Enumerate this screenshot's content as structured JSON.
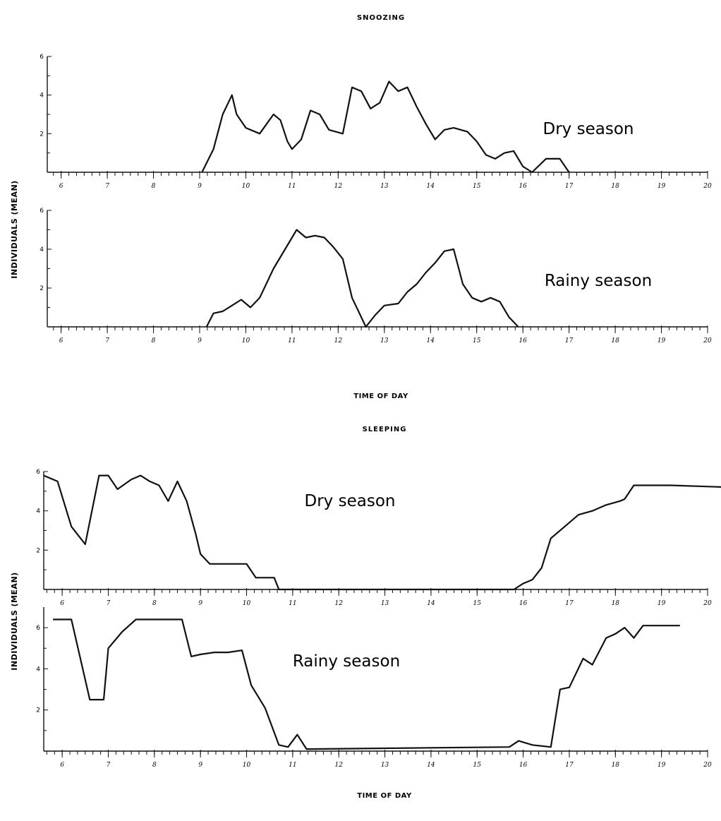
{
  "figures": [
    {
      "title": "SNOOZING",
      "xlabel": "TIME OF DAY",
      "ylabel": "INDIVIDUALS (MEAN)"
    },
    {
      "title": "SLEEPING",
      "xlabel": "TIME OF DAY",
      "ylabel": "INDIVIDUALS (MEAN)"
    }
  ],
  "chart_data": [
    {
      "type": "line",
      "group": "SNOOZING",
      "label": "Dry season",
      "xlim": [
        5.7,
        20
      ],
      "ylim": [
        0,
        6
      ],
      "x_ticks": [
        6,
        7,
        8,
        9,
        10,
        11,
        12,
        13,
        14,
        15,
        16,
        17,
        18,
        19,
        20
      ],
      "y_ticks": [
        2,
        4,
        6
      ],
      "x_tick_labels": [
        "6",
        "7",
        "8",
        "9",
        "10",
        "11",
        "12",
        "13",
        "14",
        "15",
        "16",
        "17",
        "18",
        "19",
        "20"
      ],
      "y_tick_labels": [
        "2",
        "4",
        "6"
      ],
      "grid": false,
      "series": [
        {
          "x": [
            9.05,
            9.3,
            9.5,
            9.7,
            9.8,
            10.0,
            10.3,
            10.6,
            10.75,
            10.9,
            11.0,
            11.2,
            11.4,
            11.6,
            11.8,
            12.1,
            12.3,
            12.5,
            12.7,
            12.9,
            13.1,
            13.3,
            13.5,
            13.7,
            13.9,
            14.1,
            14.3,
            14.5,
            14.8,
            15.0,
            15.2,
            15.4,
            15.6,
            15.8,
            16.0,
            16.2,
            16.5,
            16.8,
            17.0
          ],
          "y": [
            0,
            1.2,
            3.0,
            4.0,
            3.0,
            2.3,
            2.0,
            3.0,
            2.7,
            1.6,
            1.2,
            1.7,
            3.2,
            3.0,
            2.2,
            2.0,
            4.4,
            4.2,
            3.3,
            3.6,
            4.7,
            4.2,
            4.4,
            3.4,
            2.5,
            1.7,
            2.2,
            2.3,
            2.1,
            1.6,
            0.9,
            0.7,
            1.0,
            1.1,
            0.3,
            0,
            0.7,
            0.7,
            0
          ]
        }
      ]
    },
    {
      "type": "line",
      "group": "SNOOZING",
      "label": "Rainy season",
      "xlim": [
        5.7,
        20
      ],
      "ylim": [
        0,
        6
      ],
      "x_ticks": [
        6,
        7,
        8,
        9,
        10,
        11,
        12,
        13,
        14,
        15,
        16,
        17,
        18,
        19,
        20
      ],
      "y_ticks": [
        2,
        4,
        6
      ],
      "x_tick_labels": [
        "6",
        "7",
        "8",
        "9",
        "10",
        "11",
        "12",
        "13",
        "14",
        "15",
        "16",
        "17",
        "18",
        "19",
        "20"
      ],
      "y_tick_labels": [
        "2",
        "4",
        "6"
      ],
      "grid": false,
      "series": [
        {
          "x": [
            9.15,
            9.3,
            9.5,
            9.7,
            9.9,
            10.1,
            10.3,
            10.6,
            10.9,
            11.1,
            11.3,
            11.5,
            11.7,
            11.9,
            12.1,
            12.3,
            12.6,
            12.8,
            13.0,
            13.3,
            13.5,
            13.7,
            13.9,
            14.1,
            14.3,
            14.5,
            14.7,
            14.9,
            15.1,
            15.3,
            15.5,
            15.7,
            15.9
          ],
          "y": [
            0,
            0.7,
            0.8,
            1.1,
            1.4,
            1.0,
            1.5,
            3.0,
            4.2,
            5.0,
            4.6,
            4.7,
            4.6,
            4.1,
            3.5,
            1.5,
            0,
            0.6,
            1.1,
            1.2,
            1.8,
            2.2,
            2.8,
            3.3,
            3.9,
            4.0,
            2.2,
            1.5,
            1.3,
            1.5,
            1.3,
            0.5,
            0
          ]
        }
      ]
    },
    {
      "type": "line",
      "group": "SLEEPING",
      "label": "Dry season",
      "xlim": [
        5.6,
        20
      ],
      "ylim": [
        0,
        6
      ],
      "x_ticks": [
        6,
        7,
        8,
        9,
        10,
        11,
        12,
        13,
        14,
        15,
        16,
        17,
        18,
        19,
        20
      ],
      "y_ticks": [
        2,
        4,
        6
      ],
      "x_tick_labels": [
        "6",
        "7",
        "8",
        "9",
        "10",
        "11",
        "12",
        "13",
        "14",
        "15",
        "16",
        "17",
        "18",
        "19",
        "20"
      ],
      "y_tick_labels": [
        "2",
        "4",
        "6"
      ],
      "grid": false,
      "series": [
        {
          "x": [
            5.6,
            5.9,
            6.2,
            6.5,
            6.8,
            7.0,
            7.2,
            7.5,
            7.7,
            7.9,
            8.1,
            8.3,
            8.5,
            8.7,
            8.9,
            9.0,
            9.2,
            9.5,
            10.0,
            10.2,
            10.6,
            10.7,
            15.8,
            16.0,
            16.2,
            16.4,
            16.6,
            16.9,
            17.2,
            17.5,
            17.8,
            18.1,
            18.2,
            18.4,
            19.2,
            20.5
          ],
          "y": [
            5.8,
            5.5,
            3.2,
            2.3,
            5.8,
            5.8,
            5.1,
            5.6,
            5.8,
            5.5,
            5.3,
            4.5,
            5.5,
            4.5,
            2.8,
            1.8,
            1.3,
            1.3,
            1.3,
            0.6,
            0.6,
            0,
            0,
            0.3,
            0.5,
            1.1,
            2.6,
            3.2,
            3.8,
            4.0,
            4.3,
            4.5,
            4.6,
            5.3,
            5.3,
            5.2
          ]
        }
      ]
    },
    {
      "type": "line",
      "group": "SLEEPING",
      "label": "Rainy season",
      "xlim": [
        5.6,
        20
      ],
      "ylim": [
        0,
        7
      ],
      "x_ticks": [
        6,
        7,
        8,
        9,
        10,
        11,
        12,
        13,
        14,
        15,
        16,
        17,
        18,
        19,
        20
      ],
      "y_ticks": [
        2,
        4,
        6
      ],
      "x_tick_labels": [
        "6",
        "7",
        "8",
        "9",
        "10",
        "11",
        "12",
        "13",
        "14",
        "15",
        "16",
        "17",
        "18",
        "19",
        "20"
      ],
      "y_tick_labels": [
        "2",
        "4",
        "6"
      ],
      "grid": false,
      "series": [
        {
          "x": [
            5.8,
            6.2,
            6.6,
            6.9,
            7.0,
            7.3,
            7.6,
            8.0,
            8.6,
            8.8,
            9.0,
            9.3,
            9.6,
            9.9,
            10.1,
            10.4,
            10.7,
            10.9,
            11.1,
            11.3,
            15.7,
            15.9,
            16.2,
            16.6,
            16.8,
            17.0,
            17.3,
            17.5,
            17.8,
            18.0,
            18.2,
            18.4,
            18.6,
            19.4
          ],
          "y": [
            6.4,
            6.4,
            2.5,
            2.5,
            5.0,
            5.8,
            6.4,
            6.4,
            6.4,
            4.6,
            4.7,
            4.8,
            4.8,
            4.9,
            3.2,
            2.1,
            0.3,
            0.2,
            0.8,
            0.1,
            0.2,
            0.5,
            0.3,
            0.2,
            3.0,
            3.1,
            4.5,
            4.2,
            5.5,
            5.7,
            6.0,
            5.5,
            6.1,
            6.1
          ]
        }
      ]
    }
  ]
}
